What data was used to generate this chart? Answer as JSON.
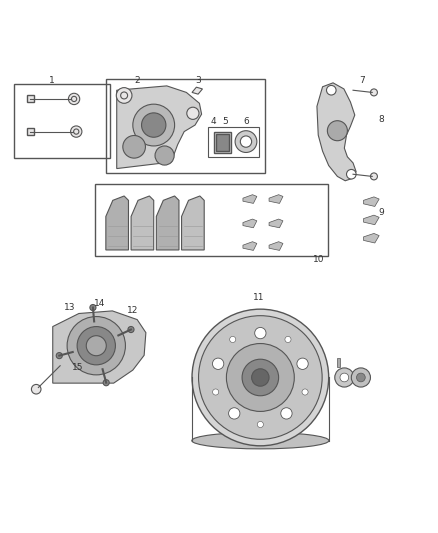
{
  "bg_color": "#ffffff",
  "line_color": "#555555",
  "fig_width": 4.38,
  "fig_height": 5.33,
  "dpi": 100,
  "gray_fill": "#e8e6e6",
  "mid_gray": "#aaaaaa",
  "dark_gray": "#888888",
  "light_gray": "#d0d0d0",
  "lw_thin": 0.8,
  "lw_med": 1.0
}
